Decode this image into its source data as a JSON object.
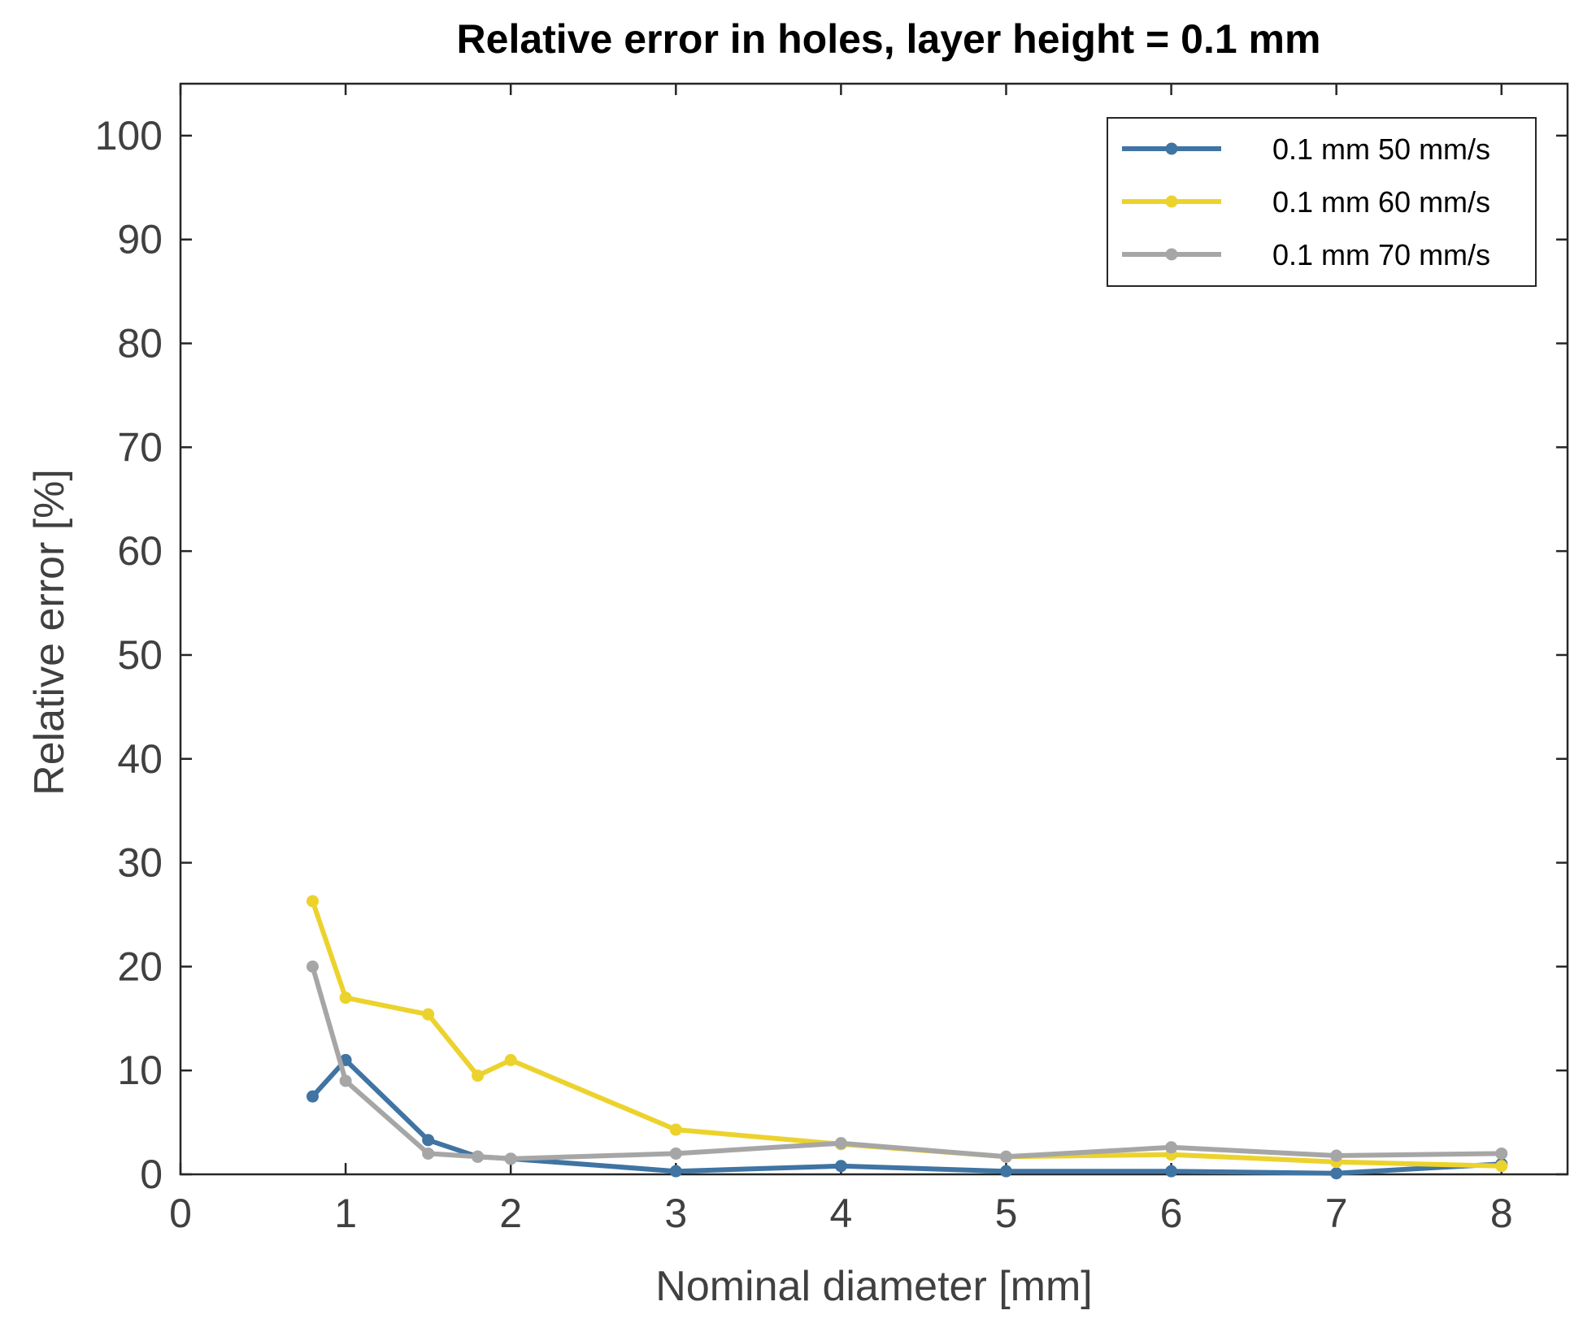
{
  "chart_data": {
    "type": "line",
    "title": "Relative error in holes, layer height = 0.1 mm",
    "xlabel": "Nominal diameter [mm]",
    "ylabel": "Relative error [%]",
    "xlim": [
      0,
      8.4
    ],
    "ylim": [
      0,
      105
    ],
    "xticks": [
      0,
      1,
      2,
      3,
      4,
      5,
      6,
      7,
      8
    ],
    "yticks": [
      0,
      10,
      20,
      30,
      40,
      50,
      60,
      70,
      80,
      90,
      100
    ],
    "grid": false,
    "legend_position": "top-right",
    "x": [
      0.8,
      1,
      1.5,
      1.8,
      2,
      3,
      4,
      5,
      6,
      7,
      8
    ],
    "series": [
      {
        "name": "0.1 mm 50 mm/s",
        "color": "#3f74a3",
        "values": [
          7.5,
          11,
          3.3,
          1.7,
          1.5,
          0.3,
          0.8,
          0.3,
          0.3,
          0.1,
          1.0
        ]
      },
      {
        "name": "0.1 mm 60 mm/s",
        "color": "#ecd22c",
        "values": [
          26.3,
          17,
          15.4,
          9.5,
          11,
          4.3,
          2.9,
          1.7,
          1.9,
          1.2,
          0.8
        ]
      },
      {
        "name": "0.1 mm 70 mm/s",
        "color": "#a6a6a6",
        "values": [
          20,
          9,
          2,
          1.7,
          1.5,
          2,
          3,
          1.7,
          2.6,
          1.8,
          2
        ]
      }
    ]
  }
}
